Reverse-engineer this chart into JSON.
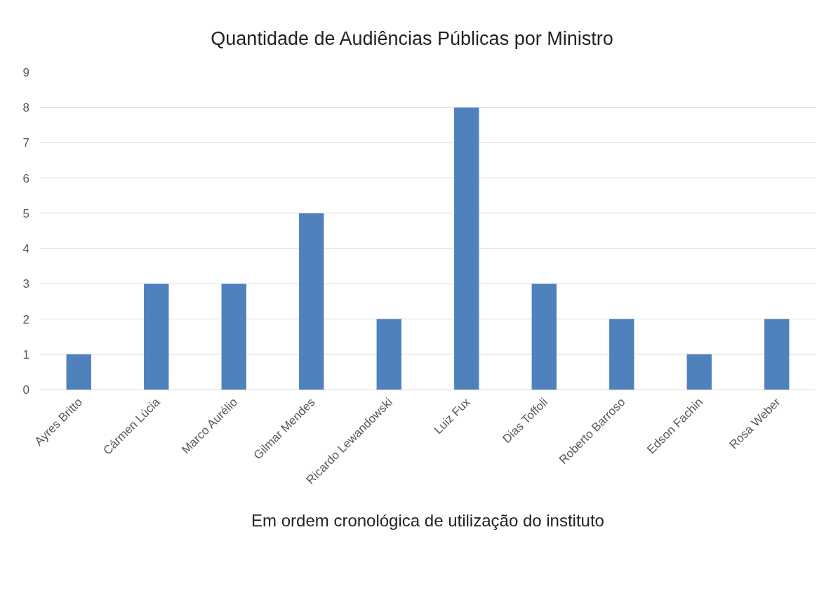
{
  "chart_data": {
    "type": "bar",
    "title": "Quantidade de Audiências Públicas por Ministro",
    "xlabel": "Em ordem cronológica de utilização do instituto",
    "categories": [
      "Ayres Britto",
      "Cármen Lúcia",
      "Marco Aurélio",
      "Gilmar Mendes",
      "Ricardo Lewandowski",
      "Luiz Fux",
      "Dias Toffoli",
      "Roberto Barroso",
      "Edson Fachin",
      "Rosa Weber"
    ],
    "values": [
      1,
      3,
      3,
      5,
      2,
      8,
      3,
      2,
      1,
      2
    ],
    "color": "#4f81bd",
    "ylim": [
      0,
      9
    ],
    "yticks": [
      0,
      1,
      2,
      3,
      4,
      5,
      6,
      7,
      8,
      9
    ],
    "grid": "y"
  }
}
